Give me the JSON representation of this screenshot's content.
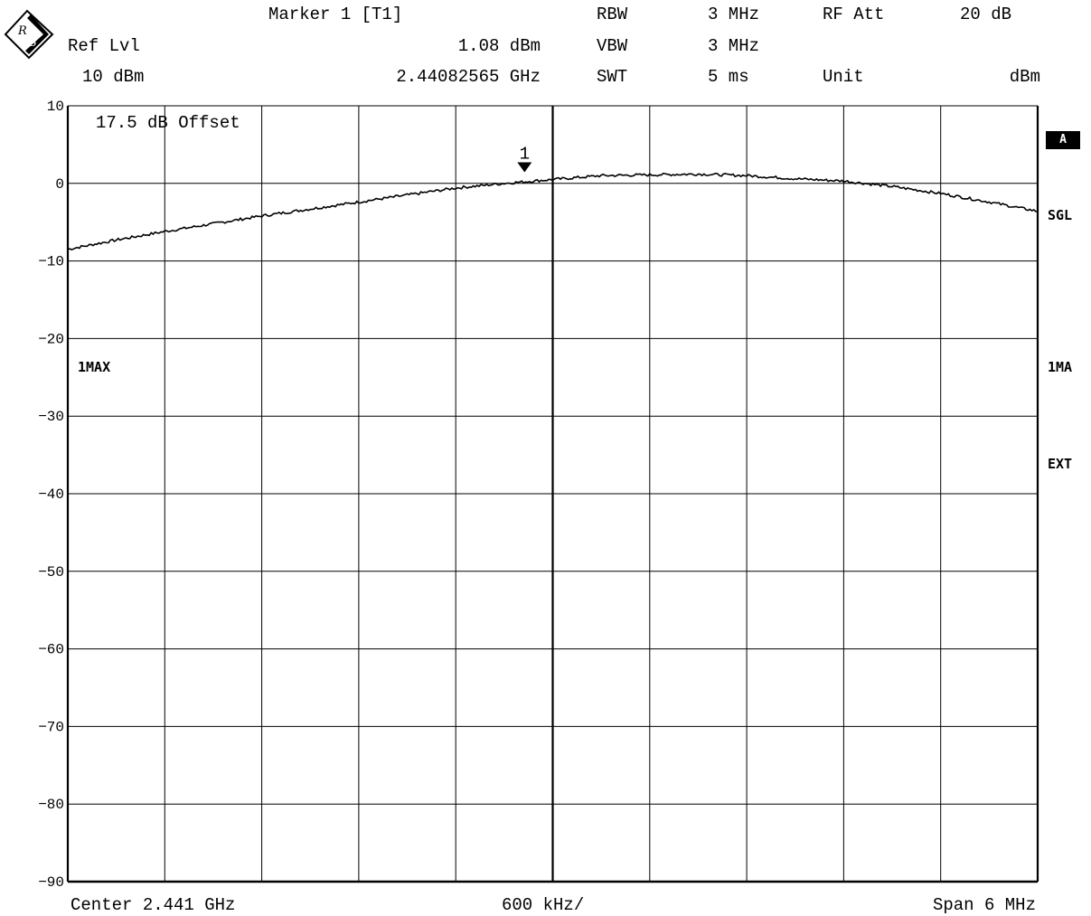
{
  "header": {
    "marker_title": "Marker 1 [T1]",
    "ref_lvl_label": "Ref Lvl",
    "ref_lvl_value": "10 dBm",
    "marker_level": "1.08 dBm",
    "marker_freq": "2.44082565 GHz",
    "rbw_label": "RBW",
    "rbw_value": "3 MHz",
    "vbw_label": "VBW",
    "vbw_value": "3 MHz",
    "swt_label": "SWT",
    "swt_value": "5 ms",
    "rf_att_label": "RF Att",
    "rf_att_value": "20 dB",
    "unit_label": "Unit",
    "unit_value": "dBm"
  },
  "annotations": {
    "offset": "17.5 dB Offset",
    "trace_label_left": "1MAX",
    "marker_number": "1"
  },
  "side_labels": {
    "trace_a": "A",
    "sgl": "SGL",
    "trace_right": "1MA",
    "ext": "EXT"
  },
  "footer": {
    "center": "Center 2.441 GHz",
    "div": "600 kHz/",
    "span": "Span 6 MHz"
  },
  "chart_data": {
    "type": "line",
    "title": "",
    "xlabel": "",
    "ylabel": "",
    "x_unit": "MHz",
    "xlim": [
      2438.0,
      2444.0
    ],
    "ylim": [
      -90,
      10
    ],
    "yticks": [
      10,
      0,
      -10,
      -20,
      -30,
      -40,
      -50,
      -60,
      -70,
      -80,
      -90
    ],
    "grid": true,
    "series": [
      {
        "x": [
          2438.0,
          2438.3,
          2438.6,
          2438.9,
          2439.2,
          2439.5,
          2439.8,
          2440.1,
          2440.4,
          2440.7,
          2441.0,
          2441.3,
          2441.6,
          2441.9,
          2442.2,
          2442.5,
          2442.8,
          2443.1,
          2443.4,
          2443.7,
          2444.0
        ],
        "values": [
          -8.5,
          -7.3,
          -6.2,
          -5.2,
          -4.2,
          -3.3,
          -2.4,
          -1.5,
          -0.6,
          0.0,
          0.5,
          1.0,
          1.1,
          1.2,
          1.0,
          0.6,
          0.3,
          -0.4,
          -1.3,
          -2.4,
          -3.6
        ]
      }
    ],
    "marker": {
      "x": 2440.82565,
      "y": 1.08,
      "label": "1"
    }
  },
  "chart_data_note_hidden": null
}
